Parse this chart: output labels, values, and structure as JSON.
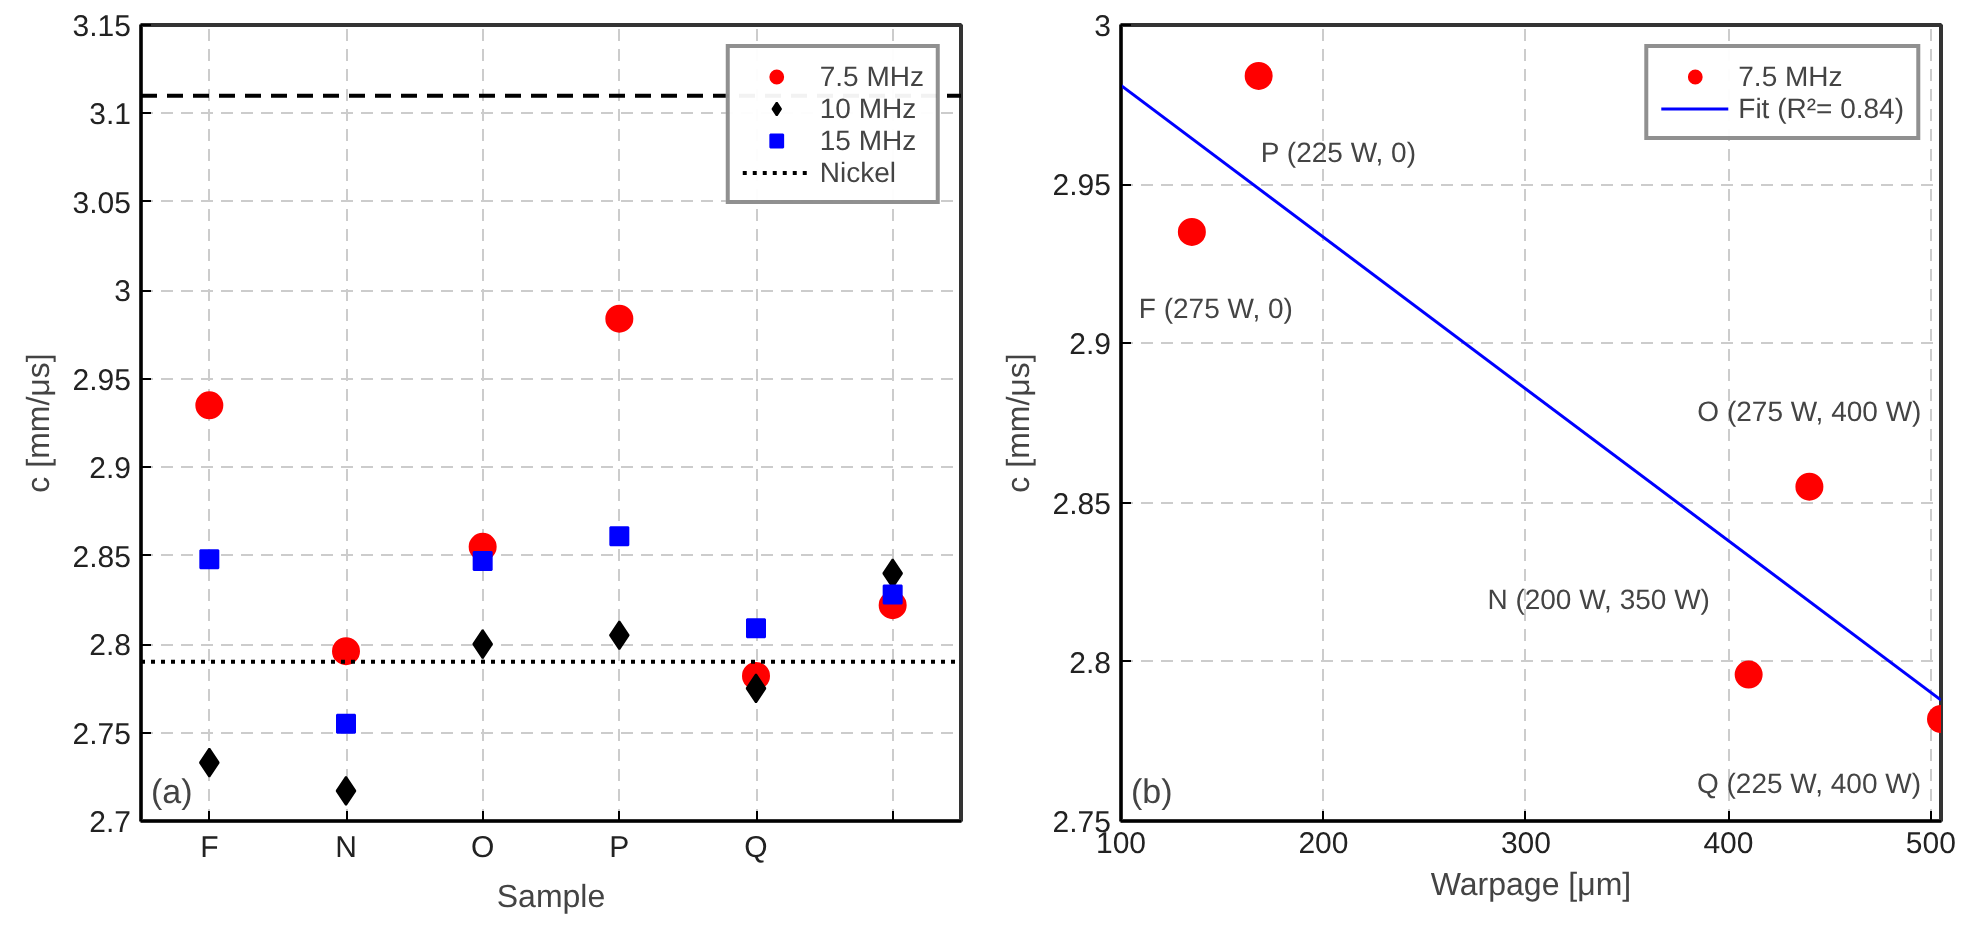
{
  "chart_data": [
    {
      "type": "scatter",
      "xlabel": "Sample",
      "ylabel": "c [mm/μs]",
      "categories": [
        "F",
        "N",
        "O",
        "P",
        "Q",
        null
      ],
      "series": [
        {
          "name": "7.5 MHz",
          "color": "#ff0000",
          "marker": "circle",
          "values": [
            2.935,
            2.796,
            2.855,
            2.984,
            2.782,
            2.822
          ]
        },
        {
          "name": "10 MHz",
          "color": "#000000",
          "marker": "diamond",
          "values": [
            2.733,
            2.717,
            2.8,
            2.805,
            2.775,
            2.84
          ]
        },
        {
          "name": "15 MHz",
          "color": "#0000ff",
          "marker": "square",
          "values": [
            2.848,
            2.755,
            2.847,
            2.861,
            2.809,
            2.828
          ]
        }
      ],
      "ref_lines": [
        {
          "axis": "y",
          "value": 3.11,
          "color": "#000000",
          "line_style": "dashed"
        },
        {
          "axis": "y",
          "value": 2.79,
          "label": "Nickel",
          "color": "#000000",
          "line_style": "dotted"
        }
      ],
      "ylim": [
        2.7,
        3.15
      ],
      "yticks": [
        2.7,
        2.75,
        2.8,
        2.85,
        2.9,
        2.95,
        3,
        3.05,
        3.1,
        3.15
      ],
      "grid": true,
      "legend": "top right",
      "annotations": [
        "(a)"
      ]
    },
    {
      "type": "scatter",
      "xlabel": "Warpage [μm]",
      "ylabel": "c [mm/μs]",
      "series": [
        {
          "name": "7.5 MHz",
          "color": "#ff0000",
          "marker": "circle",
          "x": [
            135,
            168,
            410,
            440,
            505
          ],
          "values": [
            2.935,
            2.984,
            2.796,
            2.855,
            2.782
          ]
        },
        {
          "name": "Fit (R²= 0.84)",
          "type": "line",
          "color": "#0000ff",
          "marker": "none",
          "x": [
            100,
            505
          ],
          "values": [
            2.981,
            2.788
          ]
        }
      ],
      "xlim": [
        100,
        505
      ],
      "xticks": [
        100,
        200,
        300,
        400,
        500
      ],
      "ylim": [
        2.75,
        3
      ],
      "yticks": [
        2.75,
        2.8,
        2.85,
        2.9,
        2.95,
        3
      ],
      "grid": true,
      "legend": "top right",
      "annotations": [
        {
          "text": "F (275 W, 0)",
          "x": 135,
          "y": 2.935
        },
        {
          "text": "P (225 W, 0)",
          "x": 168,
          "y": 2.984
        },
        {
          "text": "N (200 W, 350 W)",
          "x": 410,
          "y": 2.796
        },
        {
          "text": "O (275 W, 400 W)",
          "x": 440,
          "y": 2.855
        },
        {
          "text": "Q (225 W, 400 W)",
          "x": 505,
          "y": 2.782
        },
        "(b)"
      ]
    }
  ]
}
